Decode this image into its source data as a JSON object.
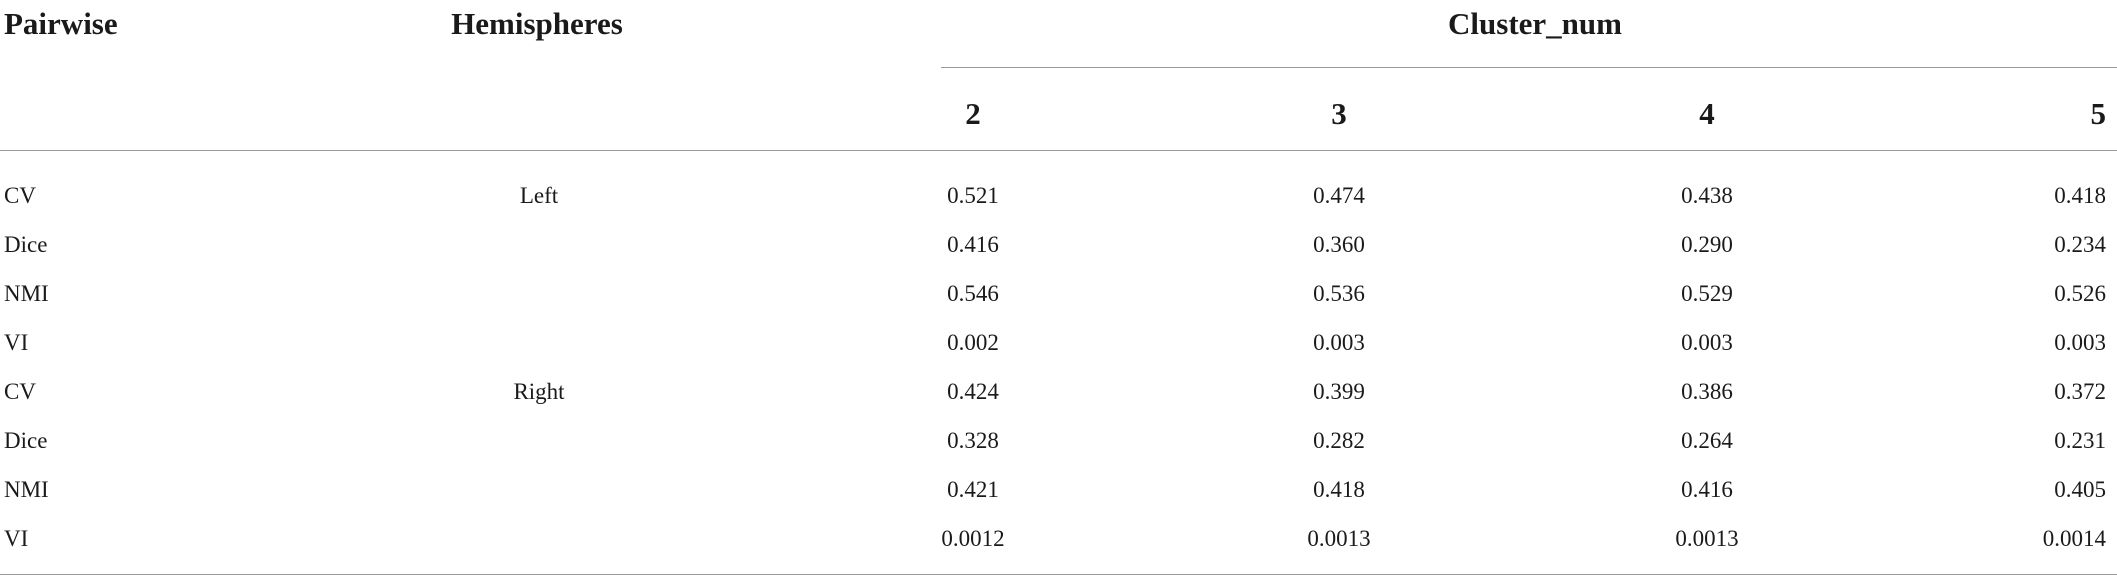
{
  "table": {
    "headers": {
      "pairwise": "Pairwise",
      "hemispheres": "Hemispheres",
      "cluster_num": "Cluster_num",
      "clusters": [
        "2",
        "3",
        "4",
        "5"
      ]
    },
    "rows": [
      {
        "metric": "CV",
        "hemisphere": "Left",
        "values": [
          "0.521",
          "0.474",
          "0.438",
          "0.418"
        ]
      },
      {
        "metric": "Dice",
        "hemisphere": "",
        "values": [
          "0.416",
          "0.360",
          "0.290",
          "0.234"
        ]
      },
      {
        "metric": "NMI",
        "hemisphere": "",
        "values": [
          "0.546",
          "0.536",
          "0.529",
          "0.526"
        ]
      },
      {
        "metric": "VI",
        "hemisphere": "",
        "values": [
          "0.002",
          "0.003",
          "0.003",
          "0.003"
        ]
      },
      {
        "metric": "CV",
        "hemisphere": "Right",
        "values": [
          "0.424",
          "0.399",
          "0.386",
          "0.372"
        ]
      },
      {
        "metric": "Dice",
        "hemisphere": "",
        "values": [
          "0.328",
          "0.282",
          "0.264",
          "0.231"
        ]
      },
      {
        "metric": "NMI",
        "hemisphere": "",
        "values": [
          "0.421",
          "0.418",
          "0.416",
          "0.405"
        ]
      },
      {
        "metric": "VI",
        "hemisphere": "",
        "values": [
          "0.0012",
          "0.0013",
          "0.0013",
          "0.0014"
        ]
      }
    ]
  }
}
